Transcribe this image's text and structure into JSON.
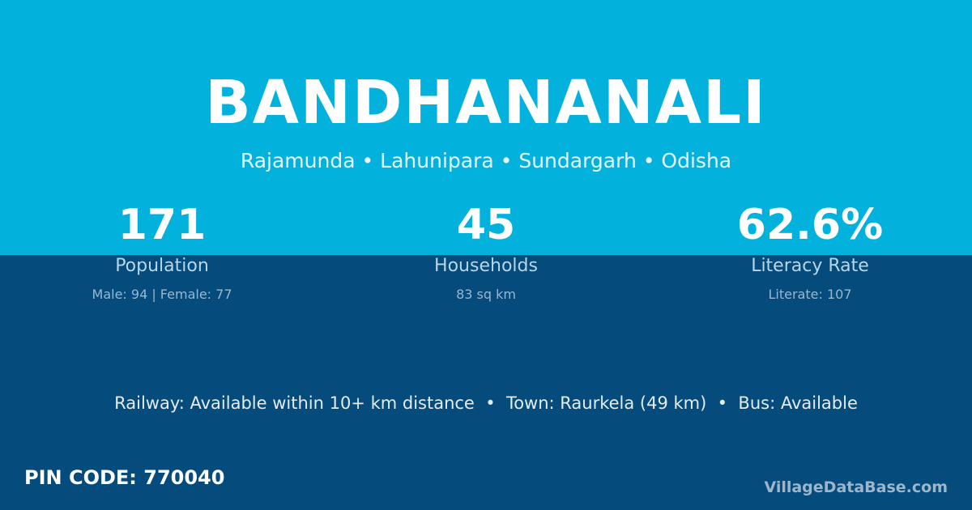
{
  "header": {
    "title": "BANDHANANALI",
    "subtitle": "Rajamunda • Lahunipara • Sundargarh • Odisha"
  },
  "stats": [
    {
      "value": "171",
      "label": "Population",
      "detail": "Male: 94 | Female: 77"
    },
    {
      "value": "45",
      "label": "Households",
      "detail": "83 sq km"
    },
    {
      "value": "62.6%",
      "label": "Literacy Rate",
      "detail": "Literate: 107"
    }
  ],
  "connectivity": "Railway: Available within 10+ km distance  •  Town: Raurkela (49 km)  •  Bus: Available",
  "footer": {
    "pin": "PIN CODE: 770040",
    "brand": "VillageDataBase.com"
  }
}
